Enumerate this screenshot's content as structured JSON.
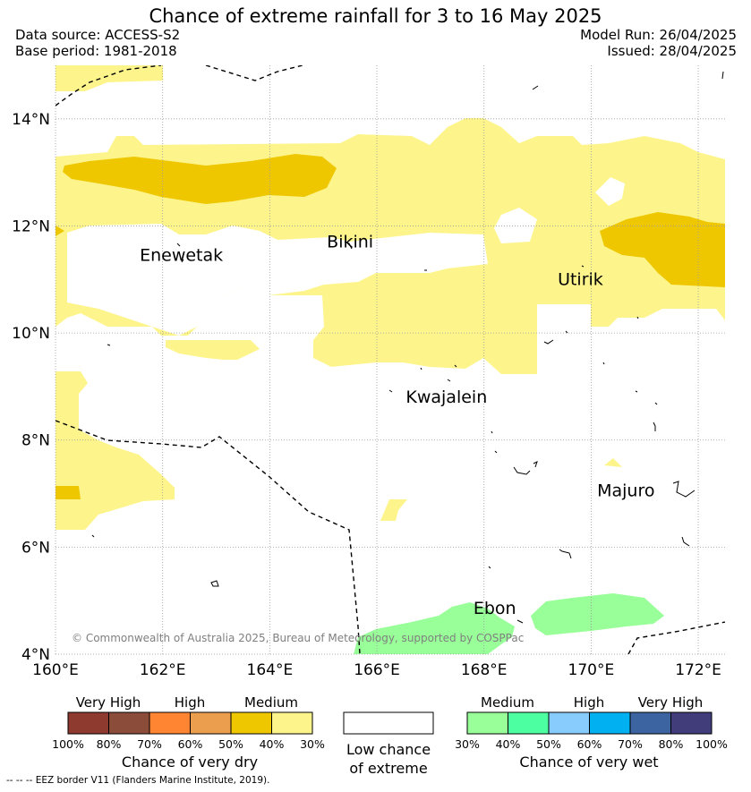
{
  "title": "Chance of extreme rainfall for 3 to 16 May 2025",
  "meta": {
    "data_source": "Data source: ACCESS-S2",
    "base_period": "Base period: 1981-2018",
    "model_run": "Model Run: 26/04/2025",
    "issued": "Issued: 28/04/2025"
  },
  "map": {
    "lon_range": [
      160,
      172.5
    ],
    "lat_range": [
      4,
      15
    ],
    "x_ticks": [
      "160°E",
      "162°E",
      "164°E",
      "166°E",
      "168°E",
      "170°E",
      "172°E"
    ],
    "y_ticks": [
      "4°N",
      "6°N",
      "8°N",
      "10°N",
      "12°N",
      "14°N"
    ],
    "places": [
      {
        "name": "Enewetak",
        "lon": 162.35,
        "lat": 11.35
      },
      {
        "name": "Bikini",
        "lon": 165.5,
        "lat": 11.6
      },
      {
        "name": "Utirik",
        "lon": 169.8,
        "lat": 10.9
      },
      {
        "name": "Kwajalein",
        "lon": 167.3,
        "lat": 8.7
      },
      {
        "name": "Majuro",
        "lon": 170.65,
        "lat": 6.95
      },
      {
        "name": "Ebon",
        "lon": 168.2,
        "lat": 4.75
      }
    ],
    "copyright": "© Commonwealth of Australia 2025, Bureau of Meteorology, supported by COSPPac"
  },
  "legend_dry": {
    "title": "Chance of very dry",
    "categories": [
      "Very High",
      "High",
      "Medium"
    ],
    "colors": [
      "#8e3a2e",
      "#8b4d3a",
      "#ff8533",
      "#eb9f4e",
      "#efc700",
      "#fdf58b"
    ],
    "ticks": [
      "100%",
      "80%",
      "70%",
      "60%",
      "50%",
      "40%",
      "30%"
    ]
  },
  "legend_low": {
    "line1": "Low chance",
    "line2": "of extreme"
  },
  "legend_wet": {
    "title": "Chance of very wet",
    "categories": [
      "Medium",
      "High",
      "Very High"
    ],
    "colors": [
      "#99ff99",
      "#4cffa1",
      "#88ccfe",
      "#00b0f0",
      "#3c64a0",
      "#413c7a"
    ],
    "ticks": [
      "30%",
      "40%",
      "50%",
      "60%",
      "70%",
      "80%",
      "100%"
    ]
  },
  "footnote": "--  --  -- EEZ border V11 (Flanders Marine Institute, 2019)."
}
